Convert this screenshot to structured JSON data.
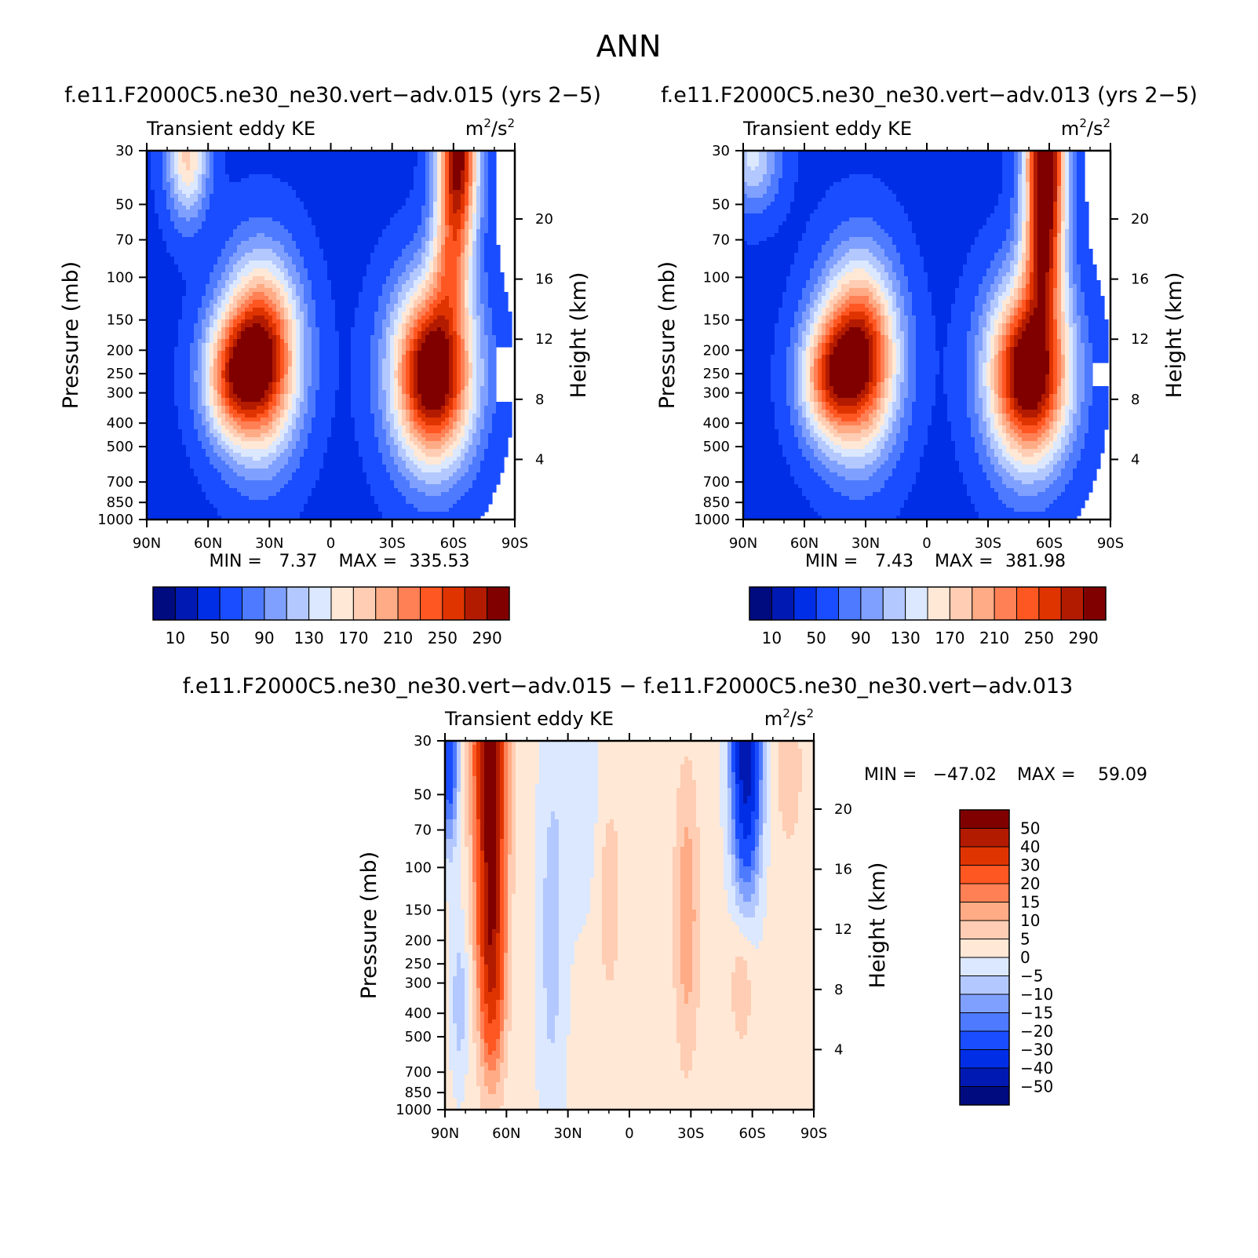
{
  "figure_title": "ANN",
  "chart_data": [
    {
      "type": "heatmap",
      "id": "left",
      "title": "f.e11.F2000C5.ne30_ne30.vert−adv.015 (yrs 2−5)",
      "subtitle_left": "Transient eddy KE",
      "units": {
        "base1": "m",
        "sup1": "2",
        "mid": "/s",
        "sup2": "2"
      },
      "ylabel": "Pressure (mb)",
      "ylabel_right": "Height (km)",
      "x_ticks": [
        "90N",
        "60N",
        "30N",
        "0",
        "30S",
        "60S",
        "90S"
      ],
      "y_ticks": [
        "30",
        "50",
        "70",
        "100",
        "150",
        "200",
        "250",
        "300",
        "400",
        "500",
        "700",
        "850",
        "1000"
      ],
      "y_right_ticks": [
        "20",
        "16",
        "12",
        "8",
        "4"
      ],
      "stats": {
        "min_label": "MIN =",
        "min": "7.37",
        "max_label": "MAX =",
        "max": "335.53"
      },
      "colorbar_labels": [
        "10",
        "50",
        "90",
        "130",
        "170",
        "210",
        "250",
        "290"
      ],
      "colorbar_colors": [
        "#000b80",
        "#0019b3",
        "#002ee6",
        "#1a4dff",
        "#4d7aff",
        "#80a0ff",
        "#b3c8ff",
        "#dbe8ff",
        "#ffe8d6",
        "#ffcdb3",
        "#ffab85",
        "#ff8055",
        "#ff5722",
        "#e03400",
        "#b31b00",
        "#800000"
      ],
      "field": {
        "base": 45,
        "blobs": [
          {
            "name": "nh jet",
            "lat": 34,
            "logp": 2.33,
            "amp": 260,
            "slat": 13,
            "slogp": 0.27
          },
          {
            "name": "nh jet tail",
            "lat": 50,
            "logp": 2.42,
            "amp": 120,
            "slat": 10,
            "slogp": 0.18
          },
          {
            "name": "sh jet",
            "lat": -50,
            "logp": 2.4,
            "amp": 290,
            "slat": 14,
            "slogp": 0.26
          },
          {
            "name": "sh strat",
            "lat": -62,
            "logp": 1.5,
            "amp": 260,
            "slat": 7,
            "slogp": 0.28
          },
          {
            "name": "nh strat",
            "lat": 70,
            "logp": 1.5,
            "amp": 130,
            "slat": 7,
            "slogp": 0.18
          },
          {
            "name": "sh mid",
            "lat": -58,
            "logp": 1.95,
            "amp": 80,
            "slat": 7,
            "slogp": 0.18
          }
        ]
      }
    },
    {
      "type": "heatmap",
      "id": "right",
      "title": "f.e11.F2000C5.ne30_ne30.vert−adv.013 (yrs 2−5)",
      "subtitle_left": "Transient eddy KE",
      "units": {
        "base1": "m",
        "sup1": "2",
        "mid": "/s",
        "sup2": "2"
      },
      "ylabel": "Pressure (mb)",
      "ylabel_right": "Height (km)",
      "x_ticks": [
        "90N",
        "60N",
        "30N",
        "0",
        "30S",
        "60S",
        "90S"
      ],
      "y_ticks": [
        "30",
        "50",
        "70",
        "100",
        "150",
        "200",
        "250",
        "300",
        "400",
        "500",
        "700",
        "850",
        "1000"
      ],
      "y_right_ticks": [
        "20",
        "16",
        "12",
        "8",
        "4"
      ],
      "stats": {
        "min_label": "MIN =",
        "min": "7.43",
        "max_label": "MAX =",
        "max": "381.98"
      },
      "colorbar_labels": [
        "10",
        "50",
        "90",
        "130",
        "170",
        "210",
        "250",
        "290"
      ],
      "colorbar_colors": [
        "#000b80",
        "#0019b3",
        "#002ee6",
        "#1a4dff",
        "#4d7aff",
        "#80a0ff",
        "#b3c8ff",
        "#dbe8ff",
        "#ffe8d6",
        "#ffcdb3",
        "#ffab85",
        "#ff8055",
        "#ff5722",
        "#e03400",
        "#b31b00",
        "#800000"
      ],
      "field": {
        "base": 45,
        "blobs": [
          {
            "name": "nh jet",
            "lat": 33,
            "logp": 2.33,
            "amp": 255,
            "slat": 13,
            "slogp": 0.27
          },
          {
            "name": "nh jet tail",
            "lat": 50,
            "logp": 2.42,
            "amp": 120,
            "slat": 10,
            "slogp": 0.18
          },
          {
            "name": "sh jet",
            "lat": -50,
            "logp": 2.4,
            "amp": 290,
            "slat": 14,
            "slogp": 0.26
          },
          {
            "name": "sh strat",
            "lat": -58,
            "logp": 1.5,
            "amp": 300,
            "slat": 7,
            "slogp": 0.32
          },
          {
            "name": "nh strat",
            "lat": 85,
            "logp": 1.5,
            "amp": 90,
            "slat": 9,
            "slogp": 0.15
          },
          {
            "name": "sh mid",
            "lat": -57,
            "logp": 1.95,
            "amp": 90,
            "slat": 7,
            "slogp": 0.18
          }
        ]
      }
    },
    {
      "type": "heatmap",
      "id": "diff",
      "title": "f.e11.F2000C5.ne30_ne30.vert−adv.015 − f.e11.F2000C5.ne30_ne30.vert−adv.013",
      "subtitle_left": "Transient eddy KE",
      "units": {
        "base1": "m",
        "sup1": "2",
        "mid": "/s",
        "sup2": "2"
      },
      "ylabel": "Pressure (mb)",
      "ylabel_right": "Height (km)",
      "x_ticks": [
        "90N",
        "60N",
        "30N",
        "0",
        "30S",
        "60S",
        "90S"
      ],
      "y_ticks": [
        "30",
        "50",
        "70",
        "100",
        "150",
        "200",
        "250",
        "300",
        "400",
        "500",
        "700",
        "850",
        "1000"
      ],
      "y_right_ticks": [
        "20",
        "16",
        "12",
        "8",
        "4"
      ],
      "stats": {
        "min_label": "MIN =",
        "min": "−47.02",
        "max_label": "MAX =",
        "max": "59.09"
      },
      "colorbar_labels": [
        "50",
        "40",
        "30",
        "20",
        "15",
        "10",
        "5",
        "0",
        "−5",
        "−10",
        "−15",
        "−20",
        "−30",
        "−40",
        "−50"
      ],
      "colorbar_colors": [
        "#800000",
        "#b31b00",
        "#e03400",
        "#ff5722",
        "#ff8055",
        "#ffab85",
        "#ffcdb3",
        "#ffe8d6",
        "#dbe8ff",
        "#b3c8ff",
        "#80a0ff",
        "#4d7aff",
        "#1a4dff",
        "#002ee6",
        "#0019b3",
        "#000b80"
      ],
      "field": {
        "base": 2,
        "blobs": [
          {
            "name": "nh strat pos",
            "lat": 68,
            "logp": 1.55,
            "amp": 58,
            "slat": 5,
            "slogp": 0.55
          },
          {
            "name": "nh tropo pos",
            "lat": 67,
            "logp": 2.4,
            "amp": 28,
            "slat": 4,
            "slogp": 0.3
          },
          {
            "name": "sh strat neg",
            "lat": -57,
            "logp": 1.5,
            "amp": -50,
            "slat": 5,
            "slogp": 0.4
          },
          {
            "name": "polar neg",
            "lat": 88,
            "logp": 1.55,
            "amp": -30,
            "slat": 3,
            "slogp": 0.25
          },
          {
            "name": "nh low neg",
            "lat": 83,
            "logp": 2.55,
            "amp": -10,
            "slat": 3,
            "slogp": 0.25
          },
          {
            "name": "trop neg",
            "lat": 38,
            "logp": 2.3,
            "amp": -9,
            "slat": 5,
            "slogp": 0.6
          },
          {
            "name": "sh pos",
            "lat": -28,
            "logp": 2.2,
            "amp": 12,
            "slat": 4,
            "slogp": 0.4
          },
          {
            "name": "sh low pos",
            "lat": -55,
            "logp": 2.45,
            "amp": 8,
            "slat": 4,
            "slogp": 0.2
          },
          {
            "name": "sh polar pos",
            "lat": -78,
            "logp": 1.6,
            "amp": 8,
            "slat": 4,
            "slogp": 0.2
          },
          {
            "name": "eq pos",
            "lat": 10,
            "logp": 2.1,
            "amp": 7,
            "slat": 4,
            "slogp": 0.3
          },
          {
            "name": "deep neg",
            "lat": 23,
            "logp": 1.7,
            "amp": -5,
            "slat": 8,
            "slogp": 0.4
          }
        ]
      }
    }
  ]
}
